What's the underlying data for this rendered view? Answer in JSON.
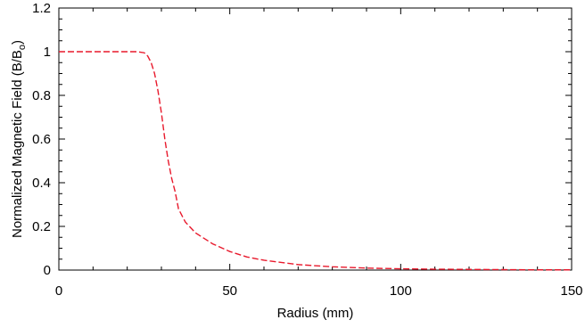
{
  "chart_data": {
    "type": "line",
    "title": "",
    "xlabel": "Radius (mm)",
    "ylabel": {
      "main": "Normalized Magnetic Field (B/B",
      "subscript": "o",
      "close": ")"
    },
    "xlim": [
      0,
      150
    ],
    "ylim": [
      0,
      1.2
    ],
    "xticks": [
      0,
      50,
      100,
      150
    ],
    "xtick_labels": [
      "0",
      "50",
      "100",
      "150"
    ],
    "yticks": [
      0,
      0.2,
      0.4,
      0.6,
      0.8,
      1,
      1.2
    ],
    "ytick_labels": [
      "0",
      "0.2",
      "0.4",
      "0.6",
      "0.8",
      "1",
      "1.2"
    ],
    "grid": false,
    "series": [
      {
        "color": "#e8192c",
        "line_style": "dashed",
        "x": [
          0,
          10,
          20,
          23,
          25,
          26,
          27,
          28,
          29,
          30,
          31,
          32,
          33,
          34,
          35,
          37,
          40,
          45,
          50,
          55,
          60,
          70,
          80,
          90,
          100,
          110,
          120,
          130,
          140,
          150
        ],
        "y": [
          1.0,
          1.0,
          1.0,
          1.0,
          0.995,
          0.98,
          0.95,
          0.9,
          0.82,
          0.72,
          0.6,
          0.5,
          0.42,
          0.36,
          0.28,
          0.22,
          0.17,
          0.12,
          0.085,
          0.06,
          0.045,
          0.025,
          0.015,
          0.009,
          0.006,
          0.004,
          0.003,
          0.002,
          0.001,
          0.001
        ]
      }
    ]
  }
}
